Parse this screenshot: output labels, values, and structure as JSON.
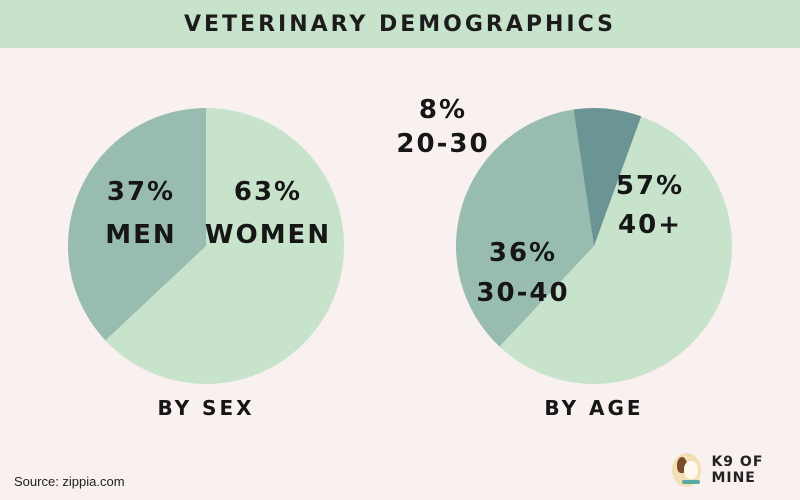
{
  "title": "Veterinary Demographics",
  "source": "Source: zippia.com",
  "brand": {
    "name": "K9 of Mine",
    "icon": "dog-logo-icon"
  },
  "colors": {
    "banner": "#c8e3cc",
    "background": "#f9f1ef",
    "light_green": "#c8e3cc",
    "mid_green": "#98bcb0",
    "dark_teal": "#6b9494"
  },
  "chart_data": [
    {
      "type": "pie",
      "caption": "By Sex",
      "slices": [
        {
          "label": "Women",
          "percent_text": "63%",
          "value": 63,
          "color": "#c8e3cc"
        },
        {
          "label": "Men",
          "percent_text": "37%",
          "value": 37,
          "color": "#98bcb0"
        }
      ]
    },
    {
      "type": "pie",
      "caption": "By Age",
      "slices": [
        {
          "label": "40+",
          "percent_text": "57%",
          "value": 57,
          "color": "#c8e3cc"
        },
        {
          "label": "30-40",
          "percent_text": "36%",
          "value": 36,
          "color": "#98bcb0"
        },
        {
          "label": "20-30",
          "percent_text": "8%",
          "value": 8,
          "color": "#6b9494"
        }
      ]
    }
  ]
}
